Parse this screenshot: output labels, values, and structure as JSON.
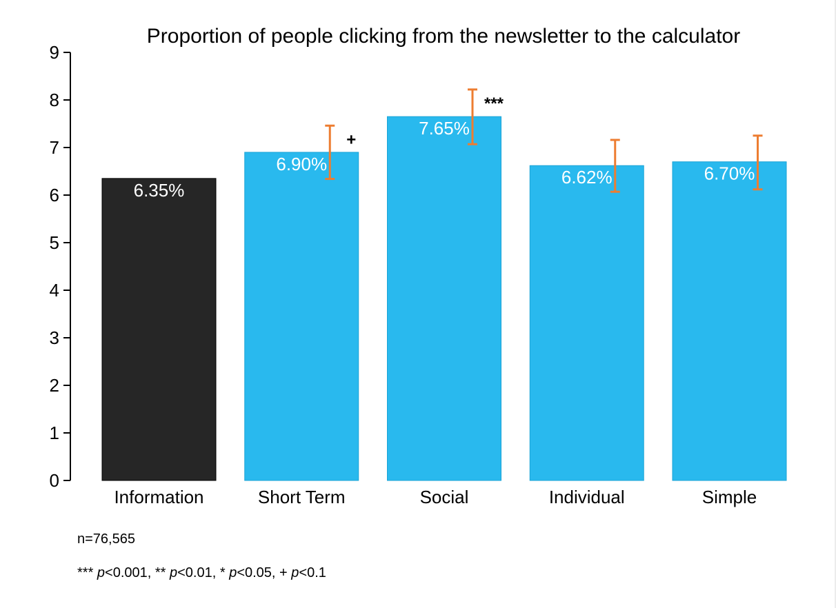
{
  "chart_data": {
    "type": "bar",
    "title": "Proportion of people clicking from the newsletter to the calculator",
    "xlabel": "",
    "ylabel": "",
    "ylim": [
      0,
      9
    ],
    "yticks": [
      "0",
      "1",
      "2",
      "3",
      "4",
      "5",
      "6",
      "7",
      "8",
      "9"
    ],
    "categories": [
      "Information",
      "Short Term",
      "Social",
      "Individual",
      "Simple"
    ],
    "values": [
      6.35,
      6.9,
      7.65,
      6.62,
      6.7
    ],
    "data_labels": [
      "6.35%",
      "6.90%",
      "7.65%",
      "6.62%",
      "6.70%"
    ],
    "error_bars": [
      null,
      [
        6.34,
        7.46
      ],
      [
        7.07,
        8.22
      ],
      [
        6.07,
        7.16
      ],
      [
        6.12,
        7.25
      ]
    ],
    "significance": [
      "",
      "+",
      "***",
      "",
      ""
    ],
    "grid": false,
    "legend": "none",
    "colors": {
      "control_bar": "#262626",
      "treatment_bar": "#29b9ee",
      "error_bar": "#ed7d31",
      "data_label": "#ffffff"
    }
  },
  "notes": {
    "n_label": "n=76,565",
    "sig_prefix": "*** ",
    "sig_p1": "p",
    "sig_t1": "<0.001, ** ",
    "sig_p2": "p",
    "sig_t2": "<0.01, * ",
    "sig_p3": "p",
    "sig_t3": "<0.05, + ",
    "sig_p4": "p",
    "sig_t4": "<0.1"
  }
}
